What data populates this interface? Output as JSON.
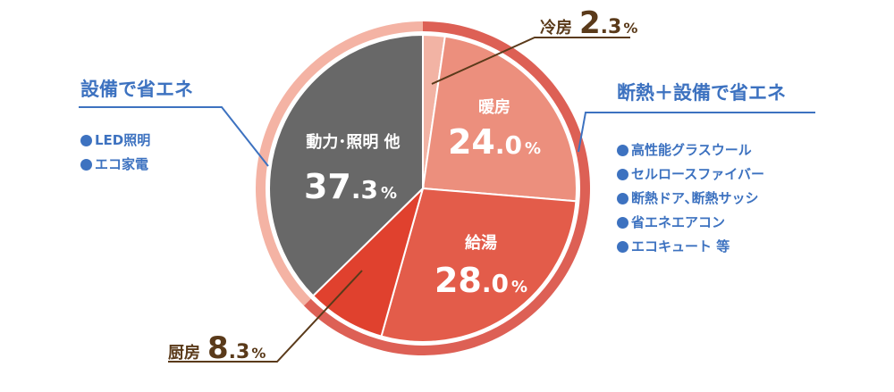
{
  "chart_data": {
    "type": "pie",
    "start_angle_deg": 0,
    "direction": "clockwise",
    "slices": [
      {
        "label": "冷房",
        "value": 2.3,
        "color": "#f2b3a4"
      },
      {
        "label": "暖房",
        "value": 24.0,
        "color": "#ec8f7d"
      },
      {
        "label": "給湯",
        "value": 28.0,
        "color": "#e35c4a"
      },
      {
        "label": "厨房",
        "value": 8.3,
        "color": "#e0412e"
      },
      {
        "label": "動力・照明 他",
        "value": 37.3,
        "color": "#686868"
      }
    ],
    "unit": "%",
    "outer_ring": [
      {
        "name": "設備で省エネ",
        "value_range": [
          62.6,
          100
        ],
        "color": "#f4b3a4"
      },
      {
        "name": "断熱＋設備で省エネ",
        "value_range": [
          0,
          62.6
        ],
        "color": "#dd6055"
      }
    ]
  },
  "labels": {
    "cooling": {
      "name": "冷房",
      "int": "2",
      "dec": ".3",
      "pct": "%"
    },
    "heating": {
      "name": "暖房",
      "int": "24",
      "dec": ".0",
      "pct": "%"
    },
    "hotwater": {
      "name": "給湯",
      "int": "28",
      "dec": ".0",
      "pct": "%"
    },
    "kitchen": {
      "name": "厨房",
      "int": "8",
      "dec": ".3",
      "pct": "%"
    },
    "power": {
      "name": "動力･照明 他",
      "int": "37",
      "dec": ".3",
      "pct": "%"
    }
  },
  "left_group": {
    "title": "設備で省エネ",
    "items": [
      "LED照明",
      "エコ家電"
    ],
    "color": "#3d72c0"
  },
  "right_group": {
    "title": "断熱＋設備で省エネ",
    "items": [
      "高性能グラスウール",
      "セルロースファイバー",
      "断熱ドア､断熱サッシ",
      "省エネエアコン",
      "エコキュート 等"
    ],
    "color": "#3d72c0"
  }
}
